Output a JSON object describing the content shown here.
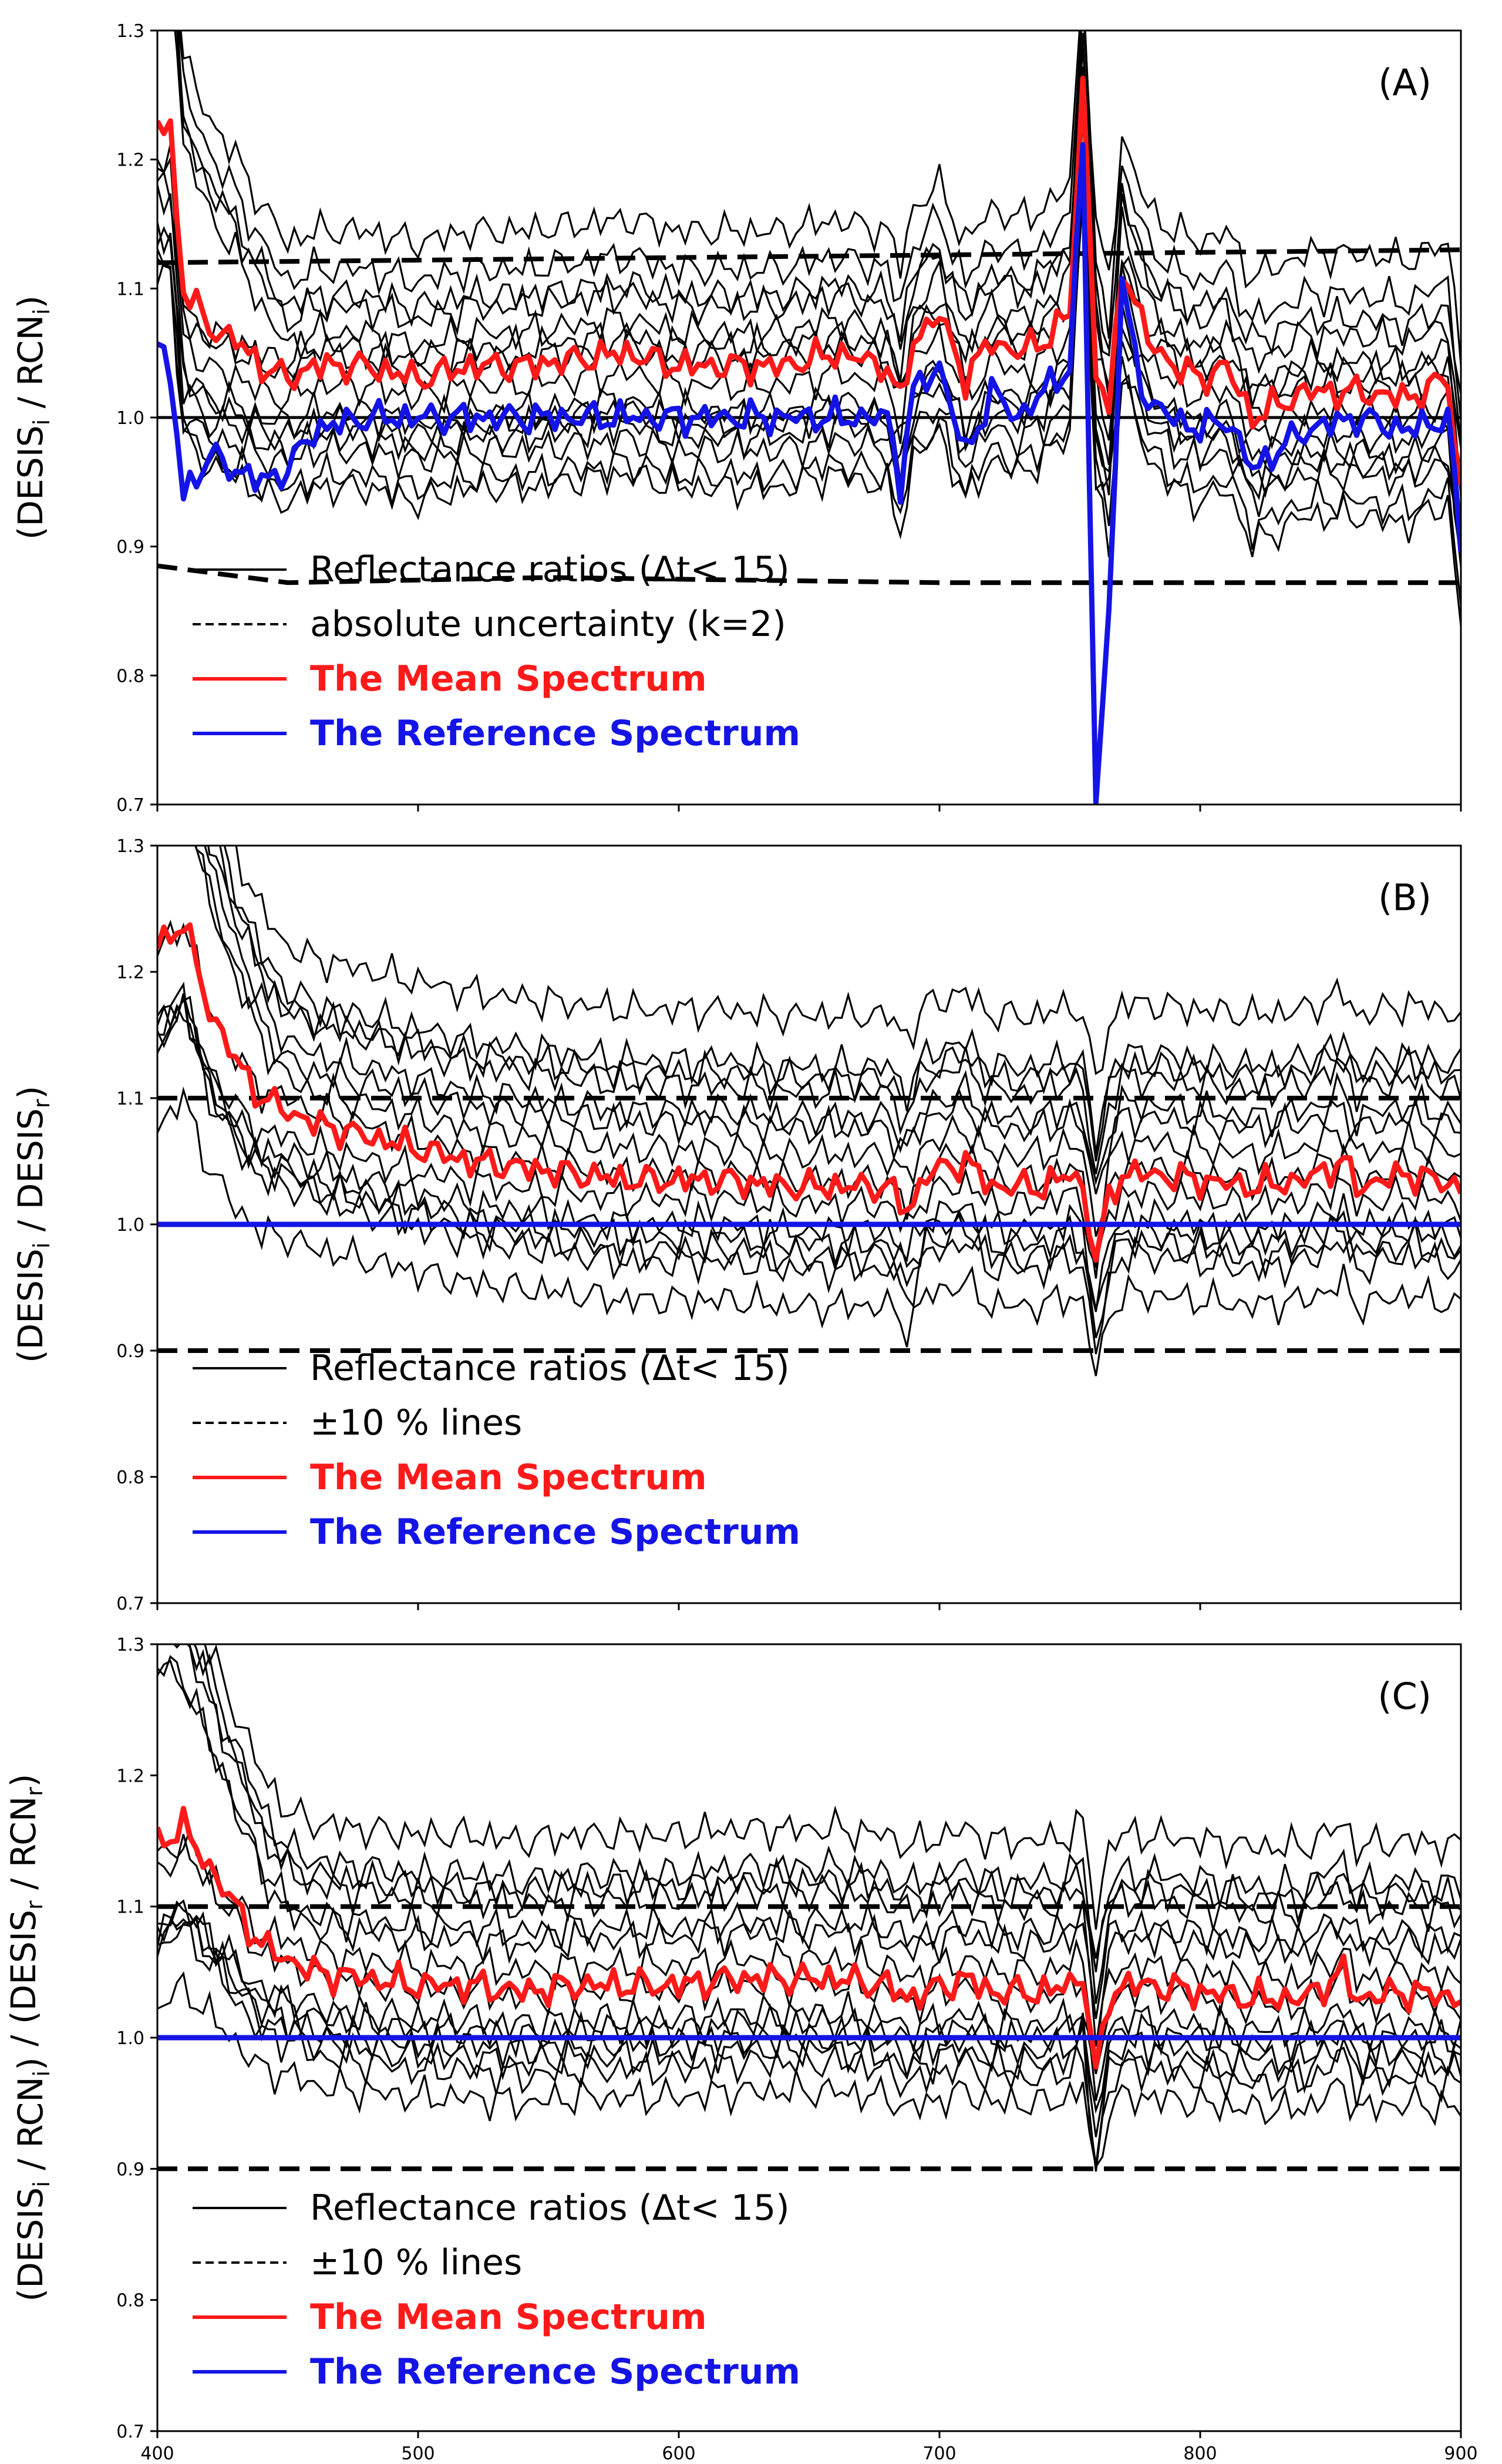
{
  "figure": {
    "xaxis": {
      "range": [
        400,
        900
      ],
      "ticks": [
        400,
        500,
        600,
        700,
        800,
        900
      ]
    },
    "colors": {
      "ratio": "#000000",
      "faded": "#9a9a9a",
      "mean": "#ff1a1a",
      "reference": "#1414e6",
      "uncert": "#000000"
    }
  },
  "chart_data": [
    {
      "id": "A",
      "type": "line",
      "panel_label": "(A)",
      "ylabel": "(DESIS_i / RCN_i)",
      "ylabel_parts": {
        "open": "(DESIS",
        "sub1": "i",
        "mid": " / RCN",
        "sub2": "i",
        "close": ")"
      },
      "ylim": [
        0.7,
        1.3
      ],
      "yticks": [
        "1.3",
        "1.2",
        "1.1",
        "1.0",
        "0.9",
        "0.8",
        "0.7"
      ],
      "xlim": [
        400,
        900
      ],
      "legend": {
        "position": "lower-left",
        "ratio_label": "Reflectance ratios (Δt< 15)",
        "dashed_label": "absolute uncertainty (k=2)",
        "mean_label": "The Mean Spectrum",
        "reference_label": "The Reference Spectrum"
      },
      "horizontal_line": 1.0,
      "dashed_upper": {
        "x": [
          400,
          900
        ],
        "y": [
          1.12,
          1.13
        ]
      },
      "dashed_lower": {
        "x": [
          400,
          450,
          550,
          700,
          900
        ],
        "y": [
          0.885,
          0.872,
          0.876,
          0.872,
          0.872
        ]
      },
      "mean_series": {
        "name": "The Mean Spectrum",
        "x": [
          400,
          405,
          410,
          420,
          430,
          440,
          450,
          460,
          480,
          500,
          520,
          540,
          560,
          580,
          600,
          620,
          640,
          660,
          680,
          685,
          690,
          700,
          710,
          720,
          730,
          740,
          750,
          755,
          760,
          765,
          770,
          775,
          780,
          790,
          800,
          810,
          820,
          840,
          860,
          880,
          895,
          900
        ],
        "y": [
          1.23,
          1.22,
          1.1,
          1.07,
          1.06,
          1.04,
          1.03,
          1.04,
          1.04,
          1.03,
          1.04,
          1.04,
          1.045,
          1.05,
          1.04,
          1.04,
          1.04,
          1.05,
          1.04,
          1.01,
          1.06,
          1.08,
          1.03,
          1.06,
          1.05,
          1.06,
          1.08,
          1.26,
          1.04,
          1.0,
          1.12,
          1.09,
          1.06,
          1.04,
          1.03,
          1.04,
          1.0,
          1.02,
          1.02,
          1.015,
          1.03,
          0.94
        ]
      },
      "reference_series": {
        "name": "The Reference Spectrum",
        "x": [
          400,
          405,
          410,
          420,
          430,
          440,
          450,
          460,
          480,
          500,
          520,
          540,
          560,
          580,
          600,
          620,
          640,
          660,
          680,
          685,
          690,
          700,
          710,
          720,
          730,
          740,
          750,
          755,
          760,
          765,
          770,
          775,
          780,
          790,
          800,
          810,
          820,
          840,
          860,
          880,
          895,
          900
        ],
        "y": [
          1.06,
          1.03,
          0.94,
          0.97,
          0.96,
          0.95,
          0.96,
          0.99,
          1.0,
          1.0,
          1.0,
          1.0,
          1.0,
          1.0,
          1.0,
          1.0,
          1.0,
          1.0,
          1.0,
          0.95,
          1.02,
          1.04,
          0.97,
          1.02,
          1.0,
          1.02,
          1.04,
          1.21,
          0.7,
          0.85,
          1.1,
          1.05,
          1.01,
          1.0,
          0.99,
          1.0,
          0.96,
          0.99,
          1.0,
          0.99,
          1.0,
          0.9
        ]
      },
      "ratio_offsets": [
        0.14,
        0.11,
        0.08,
        0.05,
        0.02,
        -0.01,
        -0.03,
        -0.05,
        0.06,
        0.0,
        -0.02,
        -0.06,
        0.09,
        0.04
      ],
      "faded_x_range": [
        450,
        720
      ]
    },
    {
      "id": "B",
      "type": "line",
      "panel_label": "(B)",
      "ylabel": "(DESIS_i / DESIS_r)",
      "ylabel_parts": {
        "open": "(DESIS",
        "sub1": "i",
        "mid": " / DESIS",
        "sub2": "r",
        "close": ")"
      },
      "ylim": [
        0.7,
        1.3
      ],
      "yticks": [
        "1.3",
        "1.2",
        "1.1",
        "1.0",
        "0.9",
        "0.8",
        "0.7"
      ],
      "xlim": [
        400,
        900
      ],
      "legend": {
        "position": "lower-left",
        "ratio_label": "Reflectance ratios (Δt< 15)",
        "dashed_label": "±10 % lines",
        "mean_label": "The Mean Spectrum",
        "reference_label": "The Reference Spectrum"
      },
      "dashed_upper": {
        "x": [
          400,
          900
        ],
        "y": [
          1.1,
          1.1
        ]
      },
      "dashed_lower": {
        "x": [
          400,
          900
        ],
        "y": [
          0.9,
          0.9
        ]
      },
      "mean_series": {
        "name": "The Mean Spectrum",
        "x": [
          400,
          405,
          410,
          420,
          430,
          440,
          450,
          460,
          480,
          500,
          520,
          540,
          560,
          580,
          600,
          620,
          640,
          660,
          680,
          688,
          695,
          710,
          720,
          730,
          740,
          750,
          755,
          760,
          765,
          770,
          780,
          800,
          820,
          840,
          855,
          860,
          880,
          900
        ],
        "y": [
          1.22,
          1.23,
          1.24,
          1.17,
          1.13,
          1.1,
          1.09,
          1.08,
          1.07,
          1.06,
          1.05,
          1.045,
          1.04,
          1.035,
          1.035,
          1.035,
          1.03,
          1.03,
          1.03,
          1.01,
          1.04,
          1.05,
          1.03,
          1.03,
          1.03,
          1.04,
          1.03,
          0.97,
          1.02,
          1.04,
          1.04,
          1.035,
          1.03,
          1.035,
          1.05,
          1.03,
          1.04,
          1.03
        ]
      },
      "reference_series": {
        "name": "The Reference Spectrum",
        "x": [
          400,
          900
        ],
        "y": [
          1.0,
          1.0
        ]
      },
      "ratio_offsets": [
        0.17,
        0.13,
        0.11,
        0.08,
        0.06,
        0.04,
        0.02,
        -0.01,
        -0.03,
        -0.06,
        0.09,
        -0.02,
        0.12,
        0.0
      ],
      "faded_x_range": [
        450,
        720
      ]
    },
    {
      "id": "C",
      "type": "line",
      "panel_label": "(C)",
      "ylabel": "(DESIS_i / RCN_i) / (DESIS_r / RCN_r)",
      "ylabel_parts": {
        "open": "(DESIS",
        "sub1": "i",
        "mid": " / RCN",
        "sub2": "i",
        "close": ")",
        "open2": " / (DESIS",
        "sub3": "r",
        "mid2": " / RCN",
        "sub4": "r",
        "close2": ")"
      },
      "ylim": [
        0.7,
        1.3
      ],
      "yticks": [
        "1.3",
        "1.2",
        "1.1",
        "1.0",
        "0.9",
        "0.8",
        "0.7"
      ],
      "xlim": [
        400,
        900
      ],
      "xticks": [
        "400",
        "500",
        "600",
        "700",
        "800",
        "900"
      ],
      "legend": {
        "position": "lower-left",
        "ratio_label": "Reflectance ratios (Δt< 15)",
        "dashed_label": "±10 % lines",
        "mean_label": "The Mean Spectrum",
        "reference_label": "The Reference Spectrum"
      },
      "dashed_upper": {
        "x": [
          400,
          900
        ],
        "y": [
          1.1,
          1.1
        ]
      },
      "dashed_lower": {
        "x": [
          400,
          900
        ],
        "y": [
          0.9,
          0.9
        ]
      },
      "mean_series": {
        "name": "The Mean Spectrum",
        "x": [
          400,
          410,
          420,
          430,
          440,
          450,
          460,
          480,
          500,
          520,
          540,
          560,
          580,
          600,
          620,
          640,
          660,
          680,
          688,
          695,
          710,
          720,
          730,
          740,
          750,
          755,
          760,
          765,
          770,
          780,
          800,
          820,
          840,
          855,
          860,
          880,
          900
        ],
        "y": [
          1.15,
          1.16,
          1.13,
          1.1,
          1.07,
          1.06,
          1.05,
          1.045,
          1.04,
          1.04,
          1.035,
          1.04,
          1.04,
          1.04,
          1.045,
          1.045,
          1.045,
          1.04,
          1.03,
          1.035,
          1.045,
          1.035,
          1.035,
          1.035,
          1.04,
          1.05,
          0.97,
          1.03,
          1.04,
          1.04,
          1.035,
          1.03,
          1.03,
          1.05,
          1.03,
          1.035,
          1.03
        ]
      },
      "reference_series": {
        "name": "The Reference Spectrum",
        "x": [
          400,
          900
        ],
        "y": [
          1.0,
          1.0
        ]
      },
      "ratio_offsets": [
        0.15,
        0.12,
        0.1,
        0.08,
        0.05,
        0.03,
        0.01,
        -0.01,
        -0.03,
        -0.05,
        0.07,
        -0.02,
        0.11,
        0.0
      ],
      "faded_x_range": [
        450,
        720
      ]
    }
  ]
}
